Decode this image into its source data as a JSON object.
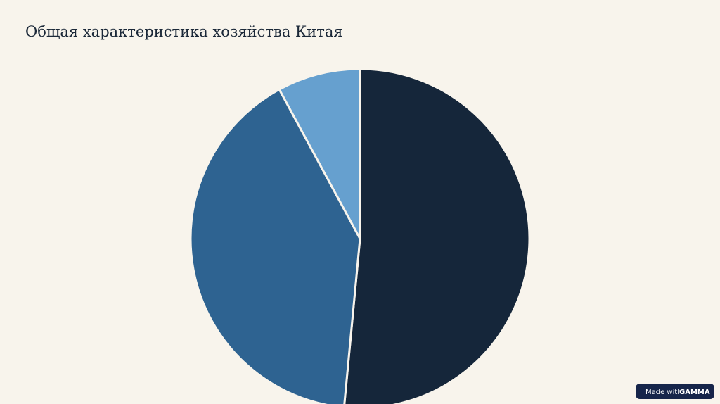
{
  "chart_data": {
    "type": "pie",
    "title": "Общая характеристика хозяйства Китая",
    "values": [
      51.5,
      40.6,
      7.9
    ],
    "colors": [
      "#15263a",
      "#2e6391",
      "#66a0cf"
    ]
  },
  "badge": {
    "prefix": "Made with",
    "brand": "GAMMA"
  }
}
